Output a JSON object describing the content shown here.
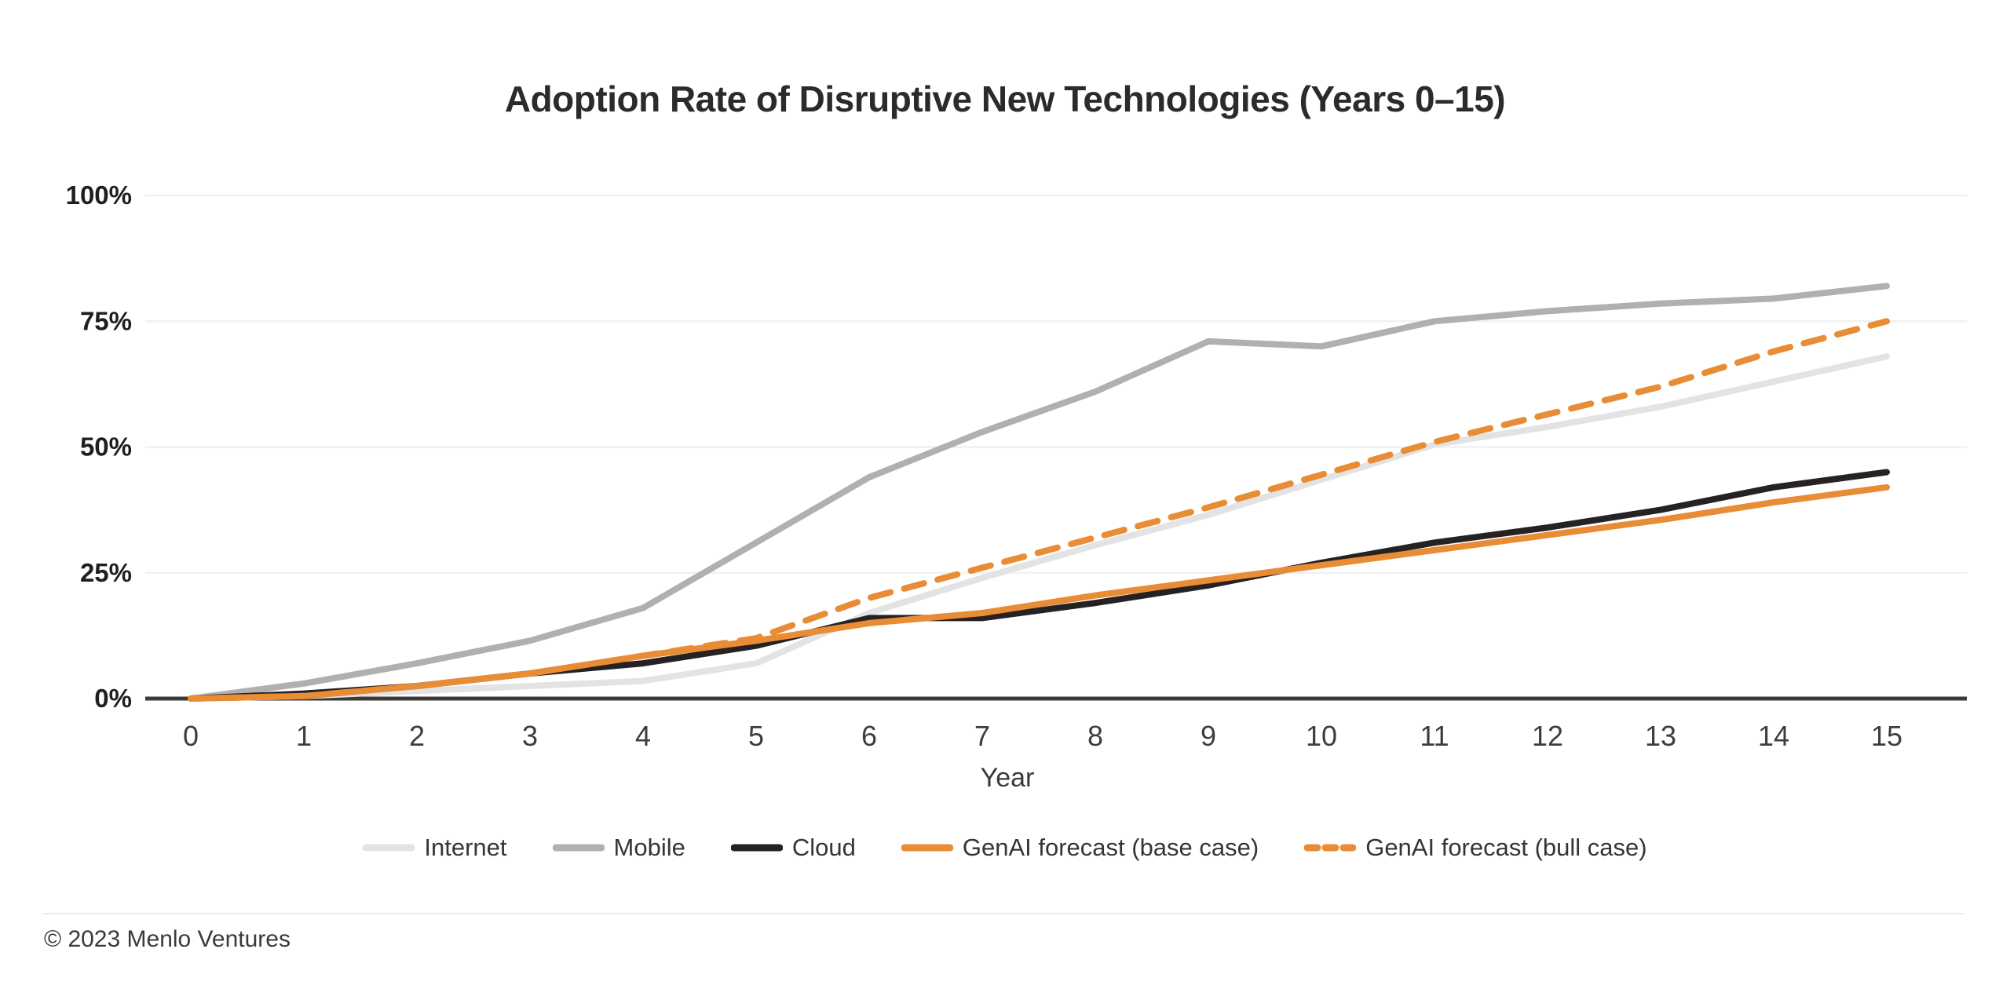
{
  "title": "Adoption Rate of Disruptive New Technologies (Years 0–15)",
  "footer": {
    "copyright": "© 2023 Menlo Ventures"
  },
  "colors": {
    "background": "#ffffff",
    "grid": "#f1f1f1",
    "axis": "#3a3a3a",
    "title_text": "#2d2a2b",
    "tick_text": "#3d3d3d",
    "accent_orange": "#e88c36"
  },
  "chart_data": {
    "type": "line",
    "title": "Adoption Rate of Disruptive New Technologies (Years 0–15)",
    "xlabel": "Year",
    "ylabel": "",
    "x": [
      0,
      1,
      2,
      3,
      4,
      5,
      6,
      7,
      8,
      9,
      10,
      11,
      12,
      13,
      14,
      15
    ],
    "xlim": [
      0,
      15
    ],
    "ylim": [
      0,
      100
    ],
    "yticks": [
      0,
      25,
      50,
      75,
      100
    ],
    "ytick_labels": [
      "0%",
      "25%",
      "50%",
      "75%",
      "100%"
    ],
    "grid": "horizontal",
    "legend_position": "bottom",
    "series": [
      {
        "name": "Internet",
        "color": "#e3e3e3",
        "style": "solid",
        "values": [
          0,
          0.5,
          1.5,
          2.5,
          3.5,
          7,
          17,
          24,
          30.5,
          36.5,
          43.5,
          50.5,
          54,
          58,
          63,
          68
        ]
      },
      {
        "name": "Mobile",
        "color": "#b0b0b0",
        "style": "solid",
        "values": [
          0,
          3,
          7,
          11.5,
          18,
          31,
          44,
          53,
          61,
          71,
          70,
          75,
          77,
          78.5,
          79.5,
          82
        ]
      },
      {
        "name": "Cloud",
        "color": "#262223",
        "style": "solid",
        "values": [
          0,
          1,
          2.5,
          5,
          7,
          10.5,
          16,
          16,
          19,
          22.5,
          27,
          31,
          34,
          37.5,
          42,
          45
        ]
      },
      {
        "name": "GenAI forecast (base case)",
        "color": "#e88c36",
        "style": "solid",
        "values": [
          0,
          0.5,
          2.5,
          5,
          8.5,
          11.5,
          15,
          17,
          20.5,
          23.5,
          26.5,
          29.5,
          32.5,
          35.5,
          39,
          42
        ]
      },
      {
        "name": "GenAI forecast (bull case)",
        "color": "#e88c36",
        "style": "dashed",
        "values": [
          0,
          0.5,
          2.5,
          5,
          8.5,
          12,
          20,
          26,
          32,
          38,
          44.5,
          51,
          56.5,
          62,
          69,
          75
        ]
      }
    ]
  }
}
